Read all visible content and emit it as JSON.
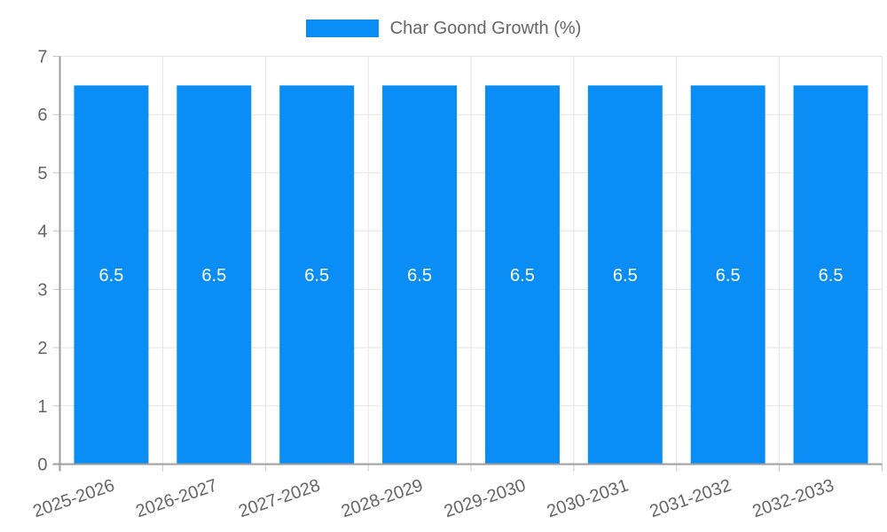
{
  "legend": {
    "label": "Char Goond Growth (%)"
  },
  "chart_data": {
    "type": "bar",
    "title": "Char Goond Growth (%)",
    "categories": [
      "2025-2026",
      "2026-2027",
      "2027-2028",
      "2028-2029",
      "2029-2030",
      "2030-2031",
      "2031-2032",
      "2032-2033"
    ],
    "series": [
      {
        "name": "Char Goond Growth (%)",
        "values": [
          6.5,
          6.5,
          6.5,
          6.5,
          6.5,
          6.5,
          6.5,
          6.5
        ]
      }
    ],
    "bar_value_labels": [
      "6.5",
      "6.5",
      "6.5",
      "6.5",
      "6.5",
      "6.5",
      "6.5",
      "6.5"
    ],
    "xlabel": "",
    "ylabel": "",
    "ylim": [
      0,
      7
    ],
    "yticks": [
      0,
      1,
      2,
      3,
      4,
      5,
      6,
      7
    ],
    "grid": true,
    "legend_position": "top",
    "x_label_rotation_deg": -19,
    "colors": {
      "bar": "#0a8df5",
      "bar_label": "#ffffff",
      "axis_text": "#666666",
      "grid_line": "#e3e3e3",
      "tick_mark": "#c8c8c8",
      "axis_line": "#9e9e9e",
      "background": "#ffffff"
    }
  }
}
